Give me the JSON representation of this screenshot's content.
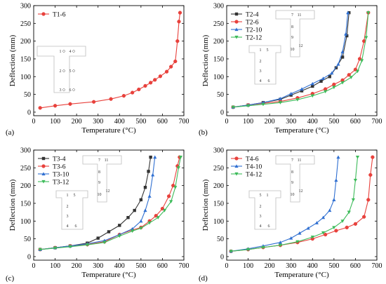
{
  "chart_data": [
    {
      "type": "line",
      "panel_label": "(a)",
      "xlabel": "Temperature (°C)",
      "ylabel": "Deflection (mm)",
      "xlim": [
        0,
        700
      ],
      "ylim": [
        -10,
        300
      ],
      "xticks": [
        0,
        100,
        200,
        300,
        400,
        500,
        600,
        700
      ],
      "yticks": [
        0,
        50,
        100,
        150,
        200,
        250,
        300
      ],
      "legend_position": "top-left",
      "schematic": {
        "labels": [
          "1",
          "4",
          "2",
          "5",
          "3",
          "6"
        ]
      },
      "series": [
        {
          "name": "T1-6",
          "color": "#e8413c",
          "marker": "circle",
          "x": [
            30,
            100,
            170,
            280,
            360,
            420,
            460,
            490,
            520,
            545,
            565,
            590,
            620,
            640,
            660,
            670,
            677,
            682
          ],
          "y": [
            12,
            18,
            23,
            29,
            37,
            46,
            55,
            64,
            74,
            83,
            91,
            101,
            114,
            128,
            143,
            200,
            255,
            280
          ]
        }
      ]
    },
    {
      "type": "line",
      "panel_label": "(b)",
      "xlabel": "Temperature (°C)",
      "ylabel": "Deflection (mm)",
      "xlim": [
        0,
        700
      ],
      "ylim": [
        -10,
        300
      ],
      "xticks": [
        0,
        100,
        200,
        300,
        400,
        500,
        600,
        700
      ],
      "yticks": [
        0,
        50,
        100,
        150,
        200,
        250,
        300
      ],
      "legend_position": "top-left",
      "schematic": {
        "labels": [
          "7",
          "11",
          "8",
          "9",
          "12",
          "10",
          "1",
          "5",
          "2",
          "3",
          "4",
          "6"
        ]
      },
      "series": [
        {
          "name": "T2-4",
          "color": "#333333",
          "marker": "square",
          "x": [
            30,
            100,
            170,
            250,
            300,
            350,
            400,
            440,
            480,
            510,
            540,
            560,
            570
          ],
          "y": [
            14,
            20,
            27,
            36,
            48,
            60,
            73,
            87,
            100,
            125,
            155,
            215,
            280
          ]
        },
        {
          "name": "T2-6",
          "color": "#e8413c",
          "marker": "circle",
          "x": [
            30,
            100,
            170,
            250,
            330,
            400,
            460,
            500,
            540,
            570,
            600,
            620,
            640,
            660
          ],
          "y": [
            14,
            20,
            25,
            30,
            40,
            52,
            65,
            78,
            90,
            105,
            120,
            150,
            200,
            280
          ]
        },
        {
          "name": "T2-10",
          "color": "#2f6fd1",
          "marker": "triangle-up",
          "x": [
            30,
            100,
            170,
            250,
            300,
            350,
            400,
            450,
            490,
            520,
            540,
            555,
            565
          ],
          "y": [
            14,
            20,
            27,
            38,
            52,
            65,
            80,
            95,
            110,
            135,
            170,
            220,
            280
          ]
        },
        {
          "name": "T2-12",
          "color": "#3dbb5a",
          "marker": "triangle-down",
          "x": [
            30,
            100,
            170,
            250,
            330,
            400,
            460,
            500,
            540,
            580,
            610,
            630,
            650,
            660
          ],
          "y": [
            14,
            18,
            22,
            27,
            35,
            46,
            58,
            70,
            83,
            98,
            115,
            145,
            210,
            280
          ]
        }
      ]
    },
    {
      "type": "line",
      "panel_label": "(c)",
      "xlabel": "Temperature (°C)",
      "ylabel": "Deflection (mm)",
      "xlim": [
        0,
        700
      ],
      "ylim": [
        -10,
        300
      ],
      "xticks": [
        0,
        100,
        200,
        300,
        400,
        500,
        600,
        700
      ],
      "yticks": [
        0,
        50,
        100,
        150,
        200,
        250,
        300
      ],
      "legend_position": "top-left",
      "schematic": {
        "labels": [
          "7",
          "11",
          "8",
          "9",
          "12",
          "10",
          "1",
          "5",
          "2",
          "3",
          "4",
          "6"
        ]
      },
      "series": [
        {
          "name": "T3-4",
          "color": "#333333",
          "marker": "square",
          "x": [
            30,
            100,
            170,
            250,
            300,
            350,
            400,
            440,
            470,
            500,
            520,
            535,
            545
          ],
          "y": [
            20,
            25,
            30,
            38,
            52,
            70,
            88,
            110,
            130,
            160,
            195,
            240,
            280
          ]
        },
        {
          "name": "T3-6",
          "color": "#e8413c",
          "marker": "circle",
          "x": [
            30,
            100,
            170,
            250,
            330,
            400,
            460,
            500,
            540,
            570,
            600,
            630,
            650,
            670,
            680
          ],
          "y": [
            20,
            25,
            30,
            34,
            42,
            62,
            75,
            82,
            100,
            115,
            135,
            170,
            200,
            255,
            280
          ]
        },
        {
          "name": "T3-10",
          "color": "#2f6fd1",
          "marker": "triangle-up",
          "x": [
            30,
            100,
            170,
            250,
            330,
            400,
            460,
            500,
            520,
            540,
            555,
            565
          ],
          "y": [
            20,
            25,
            30,
            36,
            45,
            62,
            78,
            100,
            130,
            170,
            230,
            280
          ]
        },
        {
          "name": "T3-12",
          "color": "#3dbb5a",
          "marker": "triangle-down",
          "x": [
            30,
            100,
            170,
            250,
            330,
            400,
            460,
            500,
            540,
            580,
            610,
            640,
            660,
            675,
            685
          ],
          "y": [
            20,
            24,
            28,
            33,
            40,
            58,
            72,
            80,
            95,
            110,
            130,
            155,
            195,
            250,
            280
          ]
        }
      ]
    },
    {
      "type": "line",
      "panel_label": "(d)",
      "xlabel": "Temperature (°C)",
      "ylabel": "Deflection (mm)",
      "xlim": [
        0,
        700
      ],
      "ylim": [
        -10,
        300
      ],
      "xticks": [
        0,
        100,
        200,
        300,
        400,
        500,
        600,
        700
      ],
      "yticks": [
        0,
        50,
        100,
        150,
        200,
        250,
        300
      ],
      "legend_position": "top-left",
      "schematic": {
        "labels": [
          "7",
          "11",
          "8",
          "9",
          "12",
          "10",
          "5",
          "1",
          "2",
          "3",
          "4",
          "6"
        ]
      },
      "series": [
        {
          "name": "T4-6",
          "color": "#e8413c",
          "marker": "circle",
          "x": [
            20,
            100,
            170,
            250,
            330,
            400,
            460,
            510,
            560,
            600,
            640,
            660,
            670,
            680
          ],
          "y": [
            15,
            20,
            26,
            32,
            40,
            50,
            62,
            73,
            82,
            92,
            112,
            160,
            230,
            280
          ]
        },
        {
          "name": "T4-10",
          "color": "#2f6fd1",
          "marker": "triangle-up",
          "x": [
            20,
            100,
            170,
            250,
            300,
            340,
            380,
            420,
            450,
            480,
            500,
            510,
            520
          ],
          "y": [
            15,
            22,
            30,
            40,
            52,
            66,
            80,
            95,
            110,
            130,
            160,
            215,
            280
          ]
        },
        {
          "name": "T4-12",
          "color": "#3dbb5a",
          "marker": "triangle-down",
          "x": [
            20,
            100,
            170,
            250,
            330,
            400,
            450,
            500,
            540,
            570,
            590,
            600,
            610
          ],
          "y": [
            15,
            20,
            26,
            32,
            42,
            55,
            67,
            82,
            100,
            125,
            160,
            215,
            280
          ]
        }
      ]
    }
  ]
}
